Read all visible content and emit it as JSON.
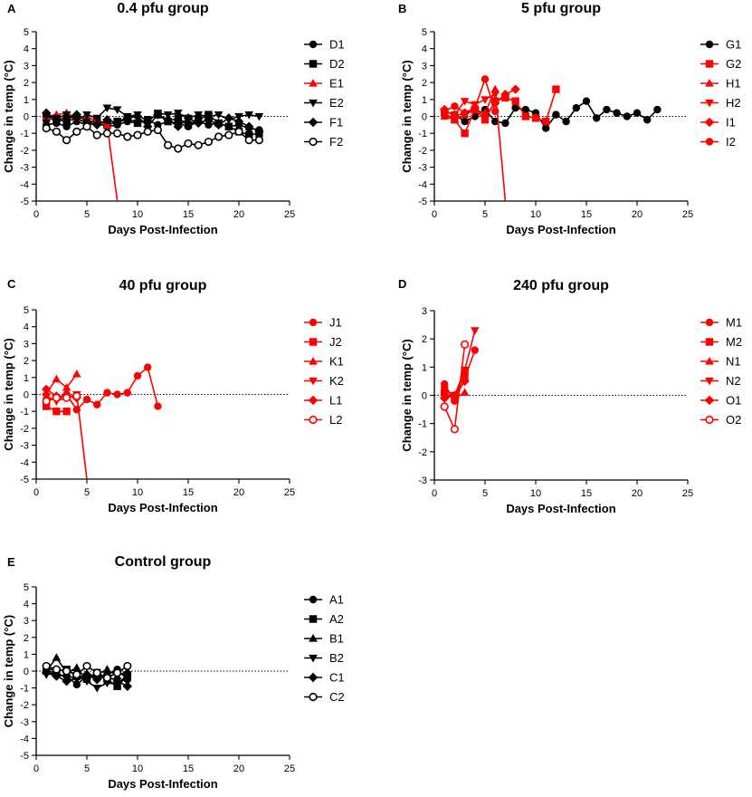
{
  "chart_data": [
    {
      "type": "line",
      "panel_letter": "A",
      "title": "0.4 pfu group",
      "xlabel": "Days Post-Infection",
      "ylabel": "Change in temp (°C)",
      "xlim": [
        0,
        25
      ],
      "ylim": [
        -5,
        5
      ],
      "xticks": [
        0,
        5,
        10,
        15,
        20,
        25
      ],
      "yticks": [
        -5,
        -4,
        -3,
        -2,
        -1,
        0,
        1,
        2,
        3,
        4,
        5
      ],
      "zero_line": "dotted",
      "legend": "right",
      "series": [
        {
          "name": "D1",
          "color": "#000000",
          "marker": "circle",
          "x": [
            1,
            2,
            3,
            4,
            5,
            6,
            7,
            8,
            9,
            10,
            11,
            12,
            13,
            14,
            15,
            16,
            17,
            18,
            19,
            20,
            21,
            22
          ],
          "y": [
            -0.5,
            -0.4,
            -0.6,
            -0.3,
            -0.5,
            -0.4,
            -0.6,
            -0.5,
            -0.3,
            -0.4,
            -0.2,
            -0.5,
            -0.3,
            -0.4,
            -0.6,
            -0.3,
            -0.5,
            -0.4,
            -0.6,
            -0.5,
            -0.7,
            -0.8
          ]
        },
        {
          "name": "D2",
          "color": "#000000",
          "marker": "square",
          "x": [
            1,
            2,
            3,
            4,
            5,
            6,
            7,
            8,
            9,
            10,
            11,
            12,
            13,
            14,
            15,
            16,
            17,
            18,
            19,
            20,
            21,
            22
          ],
          "y": [
            -0.1,
            -0.2,
            -0.3,
            -0.1,
            -0.4,
            -0.2,
            -0.5,
            -0.3,
            -0.1,
            -0.4,
            -0.2,
            0.1,
            -0.3,
            -0.1,
            -0.5,
            -0.2,
            0.1,
            -0.4,
            -0.6,
            -0.9,
            -1.1,
            -1.0
          ]
        },
        {
          "name": "E1",
          "color": "#ff0000",
          "marker": "triangle-up",
          "x": [
            1,
            2,
            3,
            4,
            5,
            6,
            7,
            8
          ],
          "y": [
            0.0,
            0.1,
            0.2,
            -0.1,
            0.0,
            -0.3,
            -0.5,
            -5.0
          ]
        },
        {
          "name": "E2",
          "color": "#000000",
          "marker": "triangle-down",
          "x": [
            1,
            2,
            3,
            4,
            5,
            6,
            7,
            8,
            9,
            10,
            11,
            12,
            13,
            14,
            15,
            16,
            17,
            18,
            19,
            20,
            21,
            22
          ],
          "y": [
            0.0,
            -0.1,
            0.1,
            -0.2,
            0.1,
            -0.1,
            0.5,
            0.4,
            0.0,
            0.1,
            -0.3,
            0.2,
            0.1,
            0.2,
            -0.1,
            0.1,
            0.0,
            0.1,
            -0.2,
            0.0,
            0.1,
            0.0
          ]
        },
        {
          "name": "F1",
          "color": "#000000",
          "marker": "diamond",
          "x": [
            1,
            2,
            3,
            4,
            5,
            6,
            7,
            8,
            9,
            10,
            11,
            12,
            13,
            14,
            15,
            16,
            17,
            18,
            19,
            20,
            21,
            22
          ],
          "y": [
            0.2,
            -0.2,
            -0.1,
            0.1,
            -0.3,
            -0.5,
            -0.2,
            -0.4,
            -0.1,
            0.0,
            -0.6,
            0.1,
            -0.2,
            -0.6,
            -0.1,
            -0.4,
            -0.2,
            -0.5,
            -0.1,
            -0.3,
            -0.6,
            -0.9
          ]
        },
        {
          "name": "F2",
          "color": "#000000",
          "marker": "circle-open",
          "x": [
            1,
            2,
            3,
            4,
            5,
            6,
            7,
            8,
            9,
            10,
            11,
            12,
            13,
            14,
            15,
            16,
            17,
            18,
            19,
            20,
            21,
            22
          ],
          "y": [
            -0.7,
            -0.9,
            -1.4,
            -0.9,
            -0.6,
            -1.1,
            -1.0,
            -1.0,
            -1.2,
            -1.1,
            -0.9,
            -0.8,
            -1.7,
            -1.9,
            -1.6,
            -1.7,
            -1.5,
            -1.2,
            -1.1,
            -0.9,
            -1.4,
            -1.4
          ]
        }
      ]
    },
    {
      "type": "line",
      "panel_letter": "B",
      "title": "5 pfu group",
      "xlabel": "Days Post-Infection",
      "ylabel": "Change in temp (°C)",
      "xlim": [
        0,
        25
      ],
      "ylim": [
        -5,
        5
      ],
      "xticks": [
        0,
        5,
        10,
        15,
        20,
        25
      ],
      "yticks": [
        -5,
        -4,
        -3,
        -2,
        -1,
        0,
        1,
        2,
        3,
        4,
        5
      ],
      "zero_line": "dotted",
      "legend": "right",
      "series": [
        {
          "name": "G1",
          "color": "#000000",
          "marker": "circle",
          "x": [
            1,
            2,
            3,
            4,
            5,
            6,
            7,
            8,
            9,
            10,
            11,
            12,
            13,
            14,
            15,
            16,
            17,
            18,
            19,
            20,
            21,
            22
          ],
          "y": [
            0.3,
            0.1,
            -0.3,
            0.0,
            0.4,
            -0.3,
            -0.4,
            0.5,
            0.4,
            0.2,
            -0.7,
            0.1,
            -0.3,
            0.5,
            0.9,
            -0.1,
            0.4,
            0.2,
            0.0,
            0.2,
            -0.2,
            0.4
          ]
        },
        {
          "name": "G2",
          "color": "#ff0000",
          "marker": "square",
          "x": [
            1,
            2,
            3,
            4,
            5,
            6,
            7,
            8,
            9,
            10,
            11,
            12
          ],
          "y": [
            0.2,
            -0.2,
            -1.0,
            0.4,
            -0.2,
            0.9,
            1.1,
            0.9,
            0.0,
            -0.1,
            -0.3,
            1.6
          ]
        },
        {
          "name": "H1",
          "color": "#ff0000",
          "marker": "triangle-up",
          "x": [
            1,
            2,
            3,
            4,
            5,
            6,
            7
          ],
          "y": [
            0.0,
            -0.2,
            0.1,
            0.4,
            0.2,
            1.6,
            -5.0
          ]
        },
        {
          "name": "H2",
          "color": "#ff0000",
          "marker": "triangle-down",
          "x": [
            1,
            2,
            3,
            4,
            5,
            6
          ],
          "y": [
            0.3,
            0.1,
            0.9,
            0.7,
            1.0,
            1.3
          ]
        },
        {
          "name": "I1",
          "color": "#ff0000",
          "marker": "diamond",
          "x": [
            1,
            2,
            3,
            4,
            5,
            6,
            7,
            8
          ],
          "y": [
            0.4,
            0.0,
            0.2,
            0.5,
            0.0,
            0.8,
            1.3,
            1.6
          ]
        },
        {
          "name": "I2",
          "color": "#ff0000",
          "marker": "circle",
          "x": [
            1,
            2,
            3,
            4,
            5,
            6
          ],
          "y": [
            0.3,
            0.6,
            0.2,
            0.5,
            2.2,
            0.3
          ]
        }
      ]
    },
    {
      "type": "line",
      "panel_letter": "C",
      "title": "40 pfu group",
      "xlabel": "Days Post-Infection",
      "ylabel": "Change in temp (°C)",
      "xlim": [
        0,
        25
      ],
      "ylim": [
        -5,
        5
      ],
      "xticks": [
        0,
        5,
        10,
        15,
        20,
        25
      ],
      "yticks": [
        -5,
        -4,
        -3,
        -2,
        -1,
        0,
        1,
        2,
        3,
        4,
        5
      ],
      "zero_line": "dotted",
      "legend": "right",
      "series": [
        {
          "name": "J1",
          "color": "#ff0000",
          "marker": "circle",
          "x": [
            1,
            2,
            3,
            4,
            5,
            6,
            7,
            8,
            9,
            10,
            11,
            12
          ],
          "y": [
            -0.3,
            -0.2,
            0.0,
            -0.9,
            -0.3,
            -0.6,
            0.1,
            0.0,
            0.1,
            1.1,
            1.6,
            -0.7
          ]
        },
        {
          "name": "J2",
          "color": "#ff0000",
          "marker": "square",
          "x": [
            1,
            2,
            3
          ],
          "y": [
            -0.7,
            -1.0,
            -1.0
          ]
        },
        {
          "name": "K1",
          "color": "#ff0000",
          "marker": "triangle-up",
          "x": [
            1,
            2,
            3,
            4
          ],
          "y": [
            0.1,
            0.9,
            0.4,
            1.2
          ]
        },
        {
          "name": "K2",
          "color": "#ff0000",
          "marker": "triangle-down",
          "x": [
            1,
            2,
            3,
            4,
            5
          ],
          "y": [
            -0.1,
            -0.4,
            -0.2,
            0.0,
            -5.0
          ]
        },
        {
          "name": "L1",
          "color": "#ff0000",
          "marker": "diamond",
          "x": [
            1,
            2,
            3,
            4
          ],
          "y": [
            0.3,
            -0.1,
            -0.1,
            -0.2
          ]
        },
        {
          "name": "L2",
          "color": "#ff0000",
          "marker": "circle-open",
          "x": [
            1,
            2,
            3,
            4
          ],
          "y": [
            -0.4,
            -0.2,
            -0.2,
            -0.1
          ]
        }
      ]
    },
    {
      "type": "line",
      "panel_letter": "D",
      "title": "240 pfu group",
      "xlabel": "Days Post-Infection",
      "ylabel": "Change in temp (°C)",
      "xlim": [
        0,
        25
      ],
      "ylim": [
        -3,
        3
      ],
      "xticks": [
        0,
        5,
        10,
        15,
        20,
        25
      ],
      "yticks": [
        -3,
        -2,
        -1,
        0,
        1,
        2,
        3
      ],
      "zero_line": "dotted",
      "legend": "right",
      "series": [
        {
          "name": "M1",
          "color": "#ff0000",
          "marker": "circle",
          "x": [
            1,
            2,
            3,
            4
          ],
          "y": [
            0.4,
            -0.2,
            0.6,
            1.6
          ]
        },
        {
          "name": "M2",
          "color": "#ff0000",
          "marker": "square",
          "x": [
            1,
            2,
            3
          ],
          "y": [
            0.1,
            -0.1,
            0.8
          ]
        },
        {
          "name": "N1",
          "color": "#ff0000",
          "marker": "triangle-up",
          "x": [
            1,
            2,
            3
          ],
          "y": [
            0.0,
            -0.1,
            0.1
          ]
        },
        {
          "name": "N2",
          "color": "#ff0000",
          "marker": "triangle-down",
          "x": [
            1,
            2,
            3,
            4
          ],
          "y": [
            0.2,
            0.0,
            0.9,
            2.3
          ]
        },
        {
          "name": "O1",
          "color": "#ff0000",
          "marker": "diamond",
          "x": [
            1,
            2,
            3
          ],
          "y": [
            -0.1,
            0.0,
            0.5
          ]
        },
        {
          "name": "O2",
          "color": "#ff0000",
          "marker": "circle-open",
          "x": [
            1,
            2,
            3
          ],
          "y": [
            -0.4,
            -1.2,
            1.8
          ]
        }
      ]
    },
    {
      "type": "line",
      "panel_letter": "E",
      "title": "Control group",
      "xlabel": "Days Post-Infection",
      "ylabel": "Change in temp (°C)",
      "xlim": [
        0,
        25
      ],
      "ylim": [
        -5,
        5
      ],
      "xticks": [
        0,
        5,
        10,
        15,
        20,
        25
      ],
      "yticks": [
        -5,
        -4,
        -3,
        -2,
        -1,
        0,
        1,
        2,
        3,
        4,
        5
      ],
      "zero_line": "dotted",
      "legend": "right",
      "series": [
        {
          "name": "A1",
          "color": "#000000",
          "marker": "circle",
          "x": [
            1,
            2,
            3,
            4,
            5,
            6,
            7,
            8,
            9
          ],
          "y": [
            0.1,
            -0.2,
            -0.3,
            -0.8,
            -0.3,
            -0.4,
            -0.2,
            0.1,
            -0.5
          ]
        },
        {
          "name": "A2",
          "color": "#000000",
          "marker": "square",
          "x": [
            1,
            2,
            3,
            4,
            5,
            6,
            7,
            8,
            9
          ],
          "y": [
            0.2,
            0.0,
            0.1,
            -0.3,
            -0.4,
            -0.1,
            -0.5,
            -0.9,
            -0.3
          ]
        },
        {
          "name": "B1",
          "color": "#000000",
          "marker": "triangle-up",
          "x": [
            1,
            2,
            3,
            4,
            5,
            6,
            7,
            8,
            9
          ],
          "y": [
            0.0,
            0.8,
            -0.1,
            0.2,
            -0.5,
            -0.2,
            0.1,
            -0.3,
            0.0
          ]
        },
        {
          "name": "B2",
          "color": "#000000",
          "marker": "triangle-down",
          "x": [
            1,
            2,
            3,
            4,
            5,
            6,
            7,
            8,
            9
          ],
          "y": [
            -0.2,
            -0.1,
            -0.4,
            -0.3,
            -0.6,
            -1.0,
            -0.7,
            -0.8,
            -0.2
          ]
        },
        {
          "name": "C1",
          "color": "#000000",
          "marker": "diamond",
          "x": [
            1,
            2,
            3,
            4,
            5,
            6,
            7,
            8,
            9
          ],
          "y": [
            -0.1,
            -0.3,
            -0.6,
            -0.4,
            -0.2,
            -0.5,
            -0.3,
            -0.6,
            -0.9
          ]
        },
        {
          "name": "C2",
          "color": "#000000",
          "marker": "circle-open",
          "x": [
            1,
            2,
            3,
            4,
            5,
            6,
            7,
            8,
            9
          ],
          "y": [
            0.3,
            0.1,
            0.0,
            -0.2,
            0.3,
            -0.1,
            -0.4,
            -0.1,
            0.3
          ]
        }
      ]
    }
  ]
}
